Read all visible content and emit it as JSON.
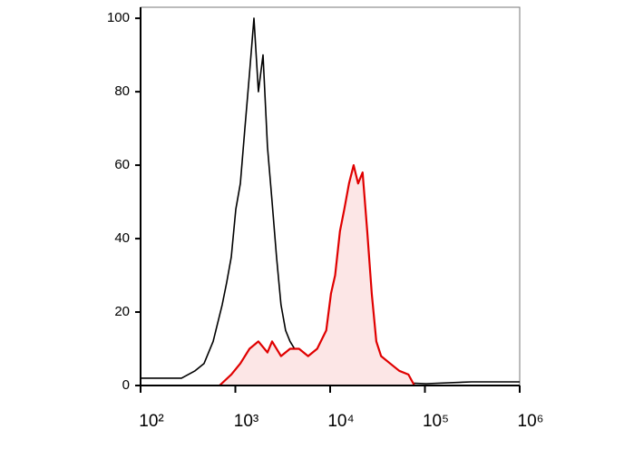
{
  "chart_data": {
    "type": "line",
    "xscale": "log",
    "xlim": [
      100,
      1000000
    ],
    "ylim": [
      0,
      103
    ],
    "xticks": [
      {
        "value": 100,
        "label": "10²"
      },
      {
        "value": 1000,
        "label": "10³"
      },
      {
        "value": 10000,
        "label": "10⁴"
      },
      {
        "value": 100000,
        "label": "10⁵"
      },
      {
        "value": 1000000,
        "label": "10⁶"
      }
    ],
    "yticks": [
      0,
      20,
      40,
      60,
      80,
      100
    ],
    "series": [
      {
        "color": "#000000",
        "fill": null,
        "x": [
          100,
          174,
          270,
          376,
          468,
          583,
          726,
          810,
          905,
          1010,
          1130,
          1260,
          1410,
          1570,
          1750,
          1960,
          2180,
          2440,
          2720,
          3030,
          3390,
          3780,
          4700,
          5860,
          7300,
          9100,
          14100,
          34500,
          103000,
          310000,
          1000000
        ],
        "values": [
          2,
          2,
          2,
          4,
          6,
          12,
          22,
          28,
          35,
          48,
          55,
          70,
          85,
          100,
          80,
          90,
          65,
          50,
          35,
          22,
          15,
          12,
          8,
          4,
          3,
          2,
          1,
          1,
          0.5,
          1,
          1
        ]
      },
      {
        "color": "#e00000",
        "fill": "#fce6e6",
        "x": [
          681,
          905,
          1130,
          1410,
          1750,
          2180,
          2440,
          3030,
          3780,
          4700,
          5860,
          7300,
          9100,
          10200,
          11300,
          12700,
          14100,
          15800,
          17700,
          19700,
          22000,
          24600,
          27500,
          30700,
          34500,
          42900,
          53600,
          66900,
          77500
        ],
        "values": [
          0,
          3,
          6,
          10,
          12,
          9,
          12,
          8,
          10,
          10,
          8,
          10,
          15,
          25,
          30,
          42,
          48,
          55,
          60,
          55,
          58,
          42,
          25,
          12,
          8,
          6,
          4,
          3,
          0
        ]
      }
    ]
  }
}
